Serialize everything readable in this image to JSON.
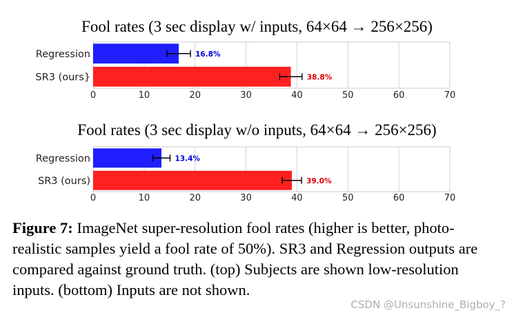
{
  "chart_data": [
    {
      "type": "bar",
      "orientation": "horizontal",
      "title": "Fool rates (3 sec display w/ inputs, 64×64 → 256×256)",
      "categories": [
        "Regression",
        "SR3 (ours}"
      ],
      "values": [
        16.8,
        38.8
      ],
      "errors": [
        2.3,
        2.2
      ],
      "value_labels": [
        "16.8%",
        "38.8%"
      ],
      "colors": [
        "#1f1fff",
        "#ff2020"
      ],
      "label_colors": [
        "#0000dd",
        "#dd0000"
      ],
      "xlim": [
        0,
        70
      ],
      "xticks": [
        0,
        10,
        20,
        30,
        40,
        50,
        60,
        70
      ],
      "grid": true
    },
    {
      "type": "bar",
      "orientation": "horizontal",
      "title": "Fool rates (3 sec display w/o inputs, 64×64 → 256×256)",
      "categories": [
        "Regression",
        "SR3 (ours)"
      ],
      "values": [
        13.4,
        39.0
      ],
      "errors": [
        1.7,
        1.9
      ],
      "value_labels": [
        "13.4%",
        "39.0%"
      ],
      "colors": [
        "#1f1fff",
        "#ff2020"
      ],
      "label_colors": [
        "#0000dd",
        "#dd0000"
      ],
      "xlim": [
        0,
        70
      ],
      "xticks": [
        0,
        10,
        20,
        30,
        40,
        50,
        60,
        70
      ],
      "grid": true
    }
  ],
  "caption": {
    "label": "Figure 7:",
    "text": " ImageNet super-resolution fool rates (higher is better, photo-realistic samples yield a fool rate of 50%). SR3 and Regression outputs are compared against ground truth. (top) Subjects are shown low-resolution inputs. (bottom) Inputs are not shown."
  },
  "watermark": "CSDN @Unsunshine_Bigboy_?"
}
